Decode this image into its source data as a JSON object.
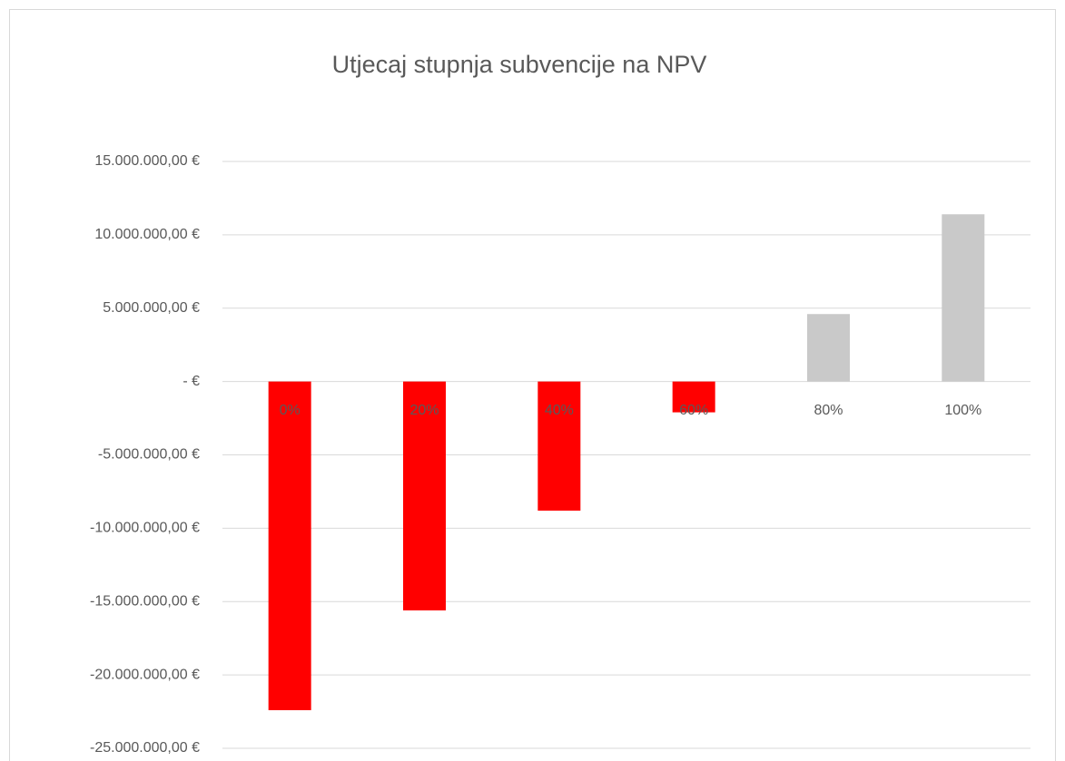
{
  "chart_data": {
    "type": "bar",
    "title": "Utjecaj stupnja subvencije na NPV",
    "categories": [
      "0%",
      "20%",
      "40%",
      "60%",
      "80%",
      "100%"
    ],
    "values": [
      -22400000,
      -15600000,
      -8800000,
      -2100000,
      4600000,
      11400000
    ],
    "colors": [
      "#ff0000",
      "#ff0000",
      "#ff0000",
      "#ff0000",
      "#c9c9c9",
      "#c9c9c9"
    ],
    "ylim": [
      -25000000,
      15000000
    ],
    "yticks": [
      {
        "value": -25000000,
        "label": "-25.000.000,00 €"
      },
      {
        "value": -20000000,
        "label": "-20.000.000,00 €"
      },
      {
        "value": -15000000,
        "label": "-15.000.000,00 €"
      },
      {
        "value": -10000000,
        "label": "-10.000.000,00 €"
      },
      {
        "value": -5000000,
        "label": "-5.000.000,00 €"
      },
      {
        "value": 0,
        "label": "-  €"
      },
      {
        "value": 5000000,
        "label": "5.000.000,00 €"
      },
      {
        "value": 10000000,
        "label": "10.000.000,00 €"
      },
      {
        "value": 15000000,
        "label": "15.000.000,00 €"
      }
    ],
    "grid": true
  }
}
